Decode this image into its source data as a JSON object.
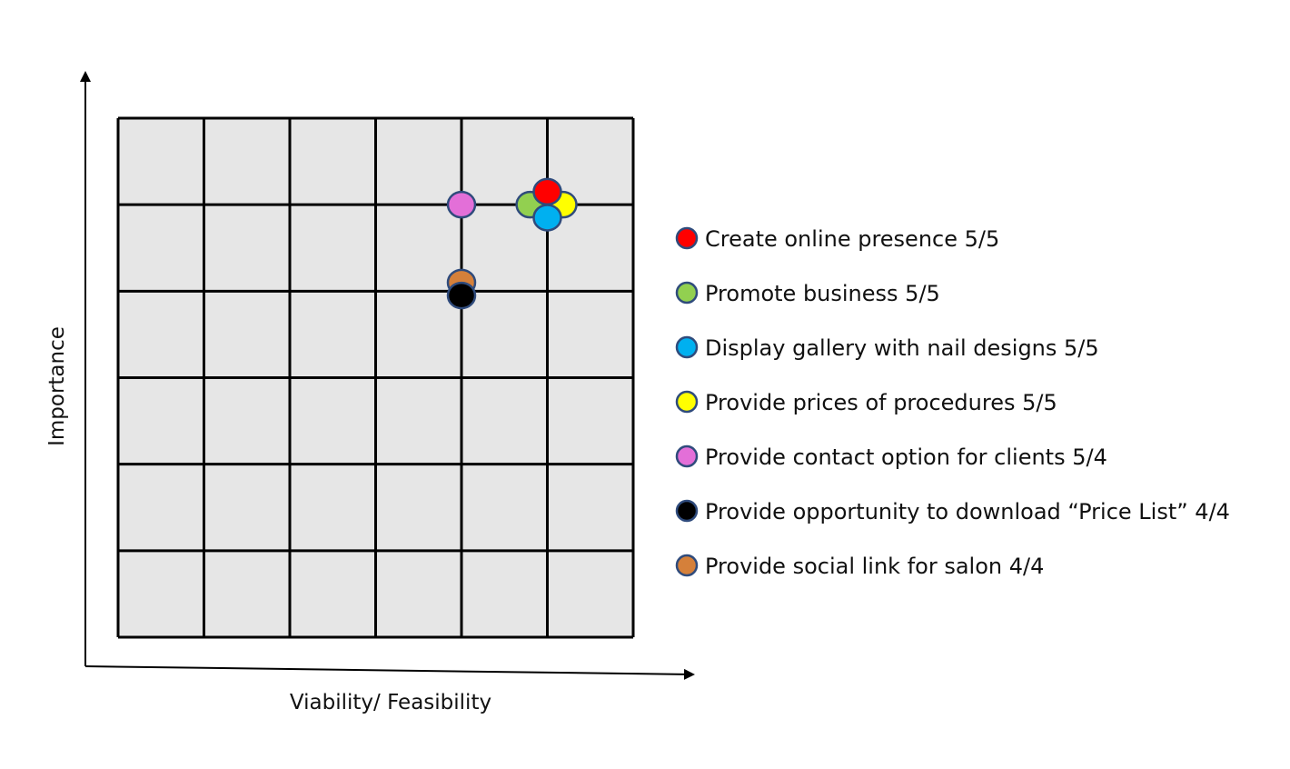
{
  "chart_data": {
    "type": "scatter",
    "title": "",
    "xlabel": "Viability/ Feasibility",
    "ylabel": "Importance",
    "xlim": [
      0,
      6
    ],
    "ylim": [
      0,
      6
    ],
    "grid": true,
    "legend_position": "right",
    "series": [
      {
        "name": "Create online presence 5/5",
        "color": "#ff0000",
        "points": [
          {
            "x": 5.0,
            "y": 5.15
          }
        ]
      },
      {
        "name": "Promote business 5/5",
        "color": "#92d050",
        "points": [
          {
            "x": 4.8,
            "y": 5.0
          }
        ]
      },
      {
        "name": "Display gallery with nail designs 5/5",
        "color": "#00b0f0",
        "points": [
          {
            "x": 5.0,
            "y": 4.85
          }
        ]
      },
      {
        "name": "Provide prices of procedures 5/5",
        "color": "#ffff00",
        "points": [
          {
            "x": 5.18,
            "y": 5.0
          }
        ]
      },
      {
        "name": "Provide contact option for clients 5/4",
        "color": "#e36fd8",
        "points": [
          {
            "x": 4.0,
            "y": 5.0
          }
        ]
      },
      {
        "name": "Provide opportunity to download “Price List” 4/4",
        "color": "#000000",
        "points": [
          {
            "x": 4.0,
            "y": 3.95
          }
        ]
      },
      {
        "name": "Provide social link for salon 4/4",
        "color": "#d5803a",
        "points": [
          {
            "x": 4.0,
            "y": 4.1
          }
        ]
      }
    ]
  },
  "style": {
    "grid_fill": "#e6e6e6",
    "grid_line": "#000000",
    "marker_stroke": "#2f4b7c",
    "axis_color": "#000000"
  }
}
